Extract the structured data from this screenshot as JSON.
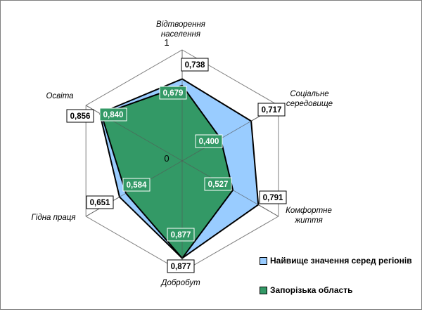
{
  "chart_data": {
    "type": "radar",
    "categories": [
      "Відтворення населення",
      "Соціальне середовище",
      "Комфортне життя",
      "Добробут",
      "Гідна праця",
      "Освіта"
    ],
    "category_lines": [
      [
        "Відтворення",
        "населення"
      ],
      [
        "Соціальне",
        "середовище"
      ],
      [
        "Комфортне",
        "життя"
      ],
      [
        "Добробут"
      ],
      [
        "Гідна праця"
      ],
      [
        "Освіта"
      ]
    ],
    "series": [
      {
        "name": "Найвище значення серед регіонів",
        "values": [
          0.738,
          0.717,
          0.791,
          0.877,
          0.651,
          0.856
        ],
        "labels": [
          "0,738",
          "0,717",
          "0,791",
          "0,877",
          "0,651",
          "0,856"
        ],
        "color": "#99ccff"
      },
      {
        "name": "Запорізька область",
        "values": [
          0.679,
          0.4,
          0.527,
          0.877,
          0.584,
          0.84
        ],
        "labels": [
          "0,679",
          "0,400",
          "0,527",
          "0,877",
          "0,584",
          "0,840"
        ],
        "color": "#339966"
      }
    ],
    "rlim": [
      0,
      1
    ],
    "tick_labels": [
      "0",
      "1"
    ],
    "grid": true,
    "legend_position": "bottom-right"
  }
}
